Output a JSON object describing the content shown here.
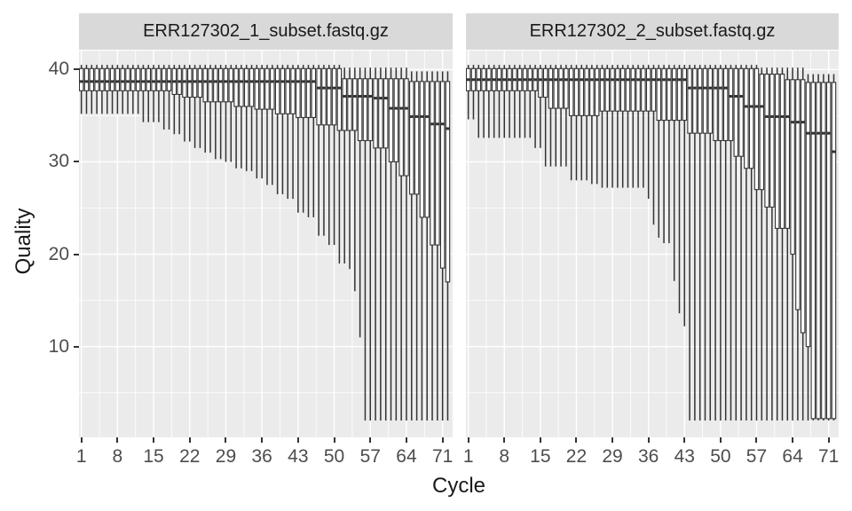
{
  "colors": {
    "background": "#FFFFFF",
    "panel_background": "#EBEBEB",
    "strip_background": "#D9D9D9",
    "grid": "#FFFFFF",
    "box_stroke": "#333333",
    "box_fill": "#FFFFFF",
    "axis_text": "#4D4D4D",
    "title_text": "#1A1A1A"
  },
  "chart_data": {
    "type": "boxplot",
    "title": "",
    "xlabel": "Cycle",
    "ylabel": "Quality",
    "legend": "none",
    "grid": "on",
    "xlim": [
      0.54,
      72.95
    ],
    "ylim": [
      0.17,
      42.05
    ],
    "x_ticks": [
      1,
      8,
      15,
      22,
      29,
      36,
      43,
      50,
      57,
      64,
      71
    ],
    "x_minor": [
      4.5,
      11.5,
      18.5,
      25.5,
      32.5,
      39.5,
      46.5,
      53.5,
      60.5,
      67.5
    ],
    "y_ticks": [
      10,
      20,
      30,
      40
    ],
    "y_minor": [
      5,
      15,
      25,
      35
    ],
    "cycles": 72,
    "facets": [
      {
        "label": "ERR127302_1_subset.fastq.gz",
        "min": [
          35.2,
          35.2,
          35.2,
          35.2,
          35.2,
          35.2,
          35.2,
          35.2,
          35.2,
          35.2,
          35.2,
          35.2,
          34.3,
          34.3,
          34.3,
          34.3,
          33.5,
          33.5,
          33.0,
          33.0,
          32.2,
          32.2,
          31.5,
          31.5,
          31.0,
          31.0,
          30.3,
          30.3,
          30.0,
          30.0,
          29.3,
          29.3,
          29.0,
          29.0,
          28.2,
          28.2,
          27.5,
          27.5,
          26.5,
          26.5,
          26.0,
          26.0,
          24.5,
          24.5,
          24.0,
          24.0,
          22.0,
          22.0,
          21.0,
          21.0,
          19.0,
          19.0,
          18.4,
          16.0,
          11.0,
          2.0,
          2.0,
          2.0,
          2.0,
          2.0,
          2.0,
          2.0,
          2.0,
          2.0,
          2.0,
          2.0,
          2.0,
          2.0,
          2.0,
          2.0,
          2.0,
          2.0
        ],
        "q1": [
          37.7,
          37.7,
          37.7,
          37.7,
          37.7,
          37.7,
          37.7,
          37.7,
          37.7,
          37.7,
          37.7,
          37.7,
          37.7,
          37.7,
          37.7,
          37.7,
          37.7,
          37.7,
          37.3,
          37.3,
          37.0,
          37.0,
          37.0,
          37.0,
          36.5,
          36.5,
          36.5,
          36.5,
          36.5,
          36.5,
          36.0,
          36.0,
          36.0,
          36.0,
          35.7,
          35.7,
          35.7,
          35.7,
          35.2,
          35.2,
          35.2,
          35.2,
          34.8,
          34.8,
          34.8,
          34.8,
          34.0,
          34.0,
          34.0,
          34.0,
          33.4,
          33.4,
          33.4,
          33.4,
          32.3,
          32.3,
          32.3,
          31.5,
          31.5,
          31.5,
          30.0,
          30.0,
          28.5,
          28.5,
          26.5,
          26.5,
          24.0,
          24.0,
          21.0,
          21.0,
          18.5,
          17.0
        ],
        "median": [
          38.7,
          38.7,
          38.7,
          38.7,
          38.7,
          38.7,
          38.7,
          38.7,
          38.7,
          38.7,
          38.7,
          38.7,
          38.7,
          38.7,
          38.7,
          38.7,
          38.7,
          38.7,
          38.7,
          38.7,
          38.7,
          38.7,
          38.7,
          38.7,
          38.7,
          38.7,
          38.7,
          38.7,
          38.7,
          38.7,
          38.7,
          38.7,
          38.7,
          38.7,
          38.7,
          38.7,
          38.7,
          38.7,
          38.7,
          38.7,
          38.7,
          38.7,
          38.7,
          38.7,
          38.7,
          38.7,
          38.0,
          38.0,
          38.0,
          38.0,
          38.0,
          37.1,
          37.1,
          37.1,
          37.1,
          37.1,
          37.1,
          36.9,
          36.9,
          36.9,
          35.8,
          35.8,
          35.8,
          35.8,
          34.9,
          34.9,
          34.9,
          34.9,
          34.1,
          34.1,
          34.1,
          33.6
        ],
        "q3": [
          40.1,
          40.1,
          40.1,
          40.1,
          40.1,
          40.1,
          40.1,
          40.1,
          40.1,
          40.1,
          40.1,
          40.1,
          40.1,
          40.1,
          40.1,
          40.1,
          40.1,
          40.1,
          40.1,
          40.1,
          40.1,
          40.1,
          40.1,
          40.1,
          40.1,
          40.1,
          40.1,
          40.1,
          40.1,
          40.1,
          40.1,
          40.1,
          40.1,
          40.1,
          40.1,
          40.1,
          40.1,
          40.1,
          40.1,
          40.1,
          40.1,
          40.1,
          40.1,
          40.1,
          40.1,
          40.1,
          40.1,
          40.1,
          40.1,
          40.1,
          40.1,
          39.0,
          39.0,
          39.0,
          39.0,
          39.0,
          39.0,
          39.0,
          39.0,
          39.0,
          39.0,
          39.0,
          39.0,
          39.0,
          38.7,
          38.7,
          38.7,
          38.7,
          38.7,
          38.7,
          38.7,
          38.7
        ],
        "max": [
          40.5,
          40.5,
          40.5,
          40.5,
          40.5,
          40.5,
          40.5,
          40.5,
          40.5,
          40.5,
          40.5,
          40.5,
          40.5,
          40.5,
          40.5,
          40.5,
          40.5,
          40.5,
          40.5,
          40.5,
          40.5,
          40.5,
          40.5,
          40.5,
          40.5,
          40.5,
          40.5,
          40.5,
          40.5,
          40.5,
          40.5,
          40.5,
          40.5,
          40.5,
          40.5,
          40.5,
          40.5,
          40.5,
          40.5,
          40.5,
          40.5,
          40.5,
          40.5,
          40.5,
          40.5,
          40.5,
          40.5,
          40.5,
          40.5,
          40.5,
          40.5,
          40.2,
          40.2,
          40.2,
          40.2,
          40.2,
          40.2,
          40.2,
          40.2,
          40.2,
          40.2,
          40.2,
          40.2,
          40.2,
          39.8,
          39.8,
          39.8,
          39.8,
          39.8,
          39.8,
          39.8,
          39.8
        ]
      },
      {
        "label": "ERR127302_2_subset.fastq.gz",
        "min": [
          34.6,
          34.6,
          32.6,
          32.6,
          32.6,
          32.6,
          32.6,
          32.6,
          32.6,
          32.6,
          32.6,
          32.6,
          32.6,
          31.5,
          31.5,
          29.5,
          29.5,
          29.5,
          29.5,
          29.5,
          28.0,
          28.0,
          28.0,
          28.0,
          27.6,
          27.6,
          27.2,
          27.2,
          27.2,
          27.2,
          27.2,
          27.2,
          27.2,
          27.2,
          27.2,
          26.0,
          23.2,
          21.8,
          21.2,
          21.2,
          17.1,
          13.6,
          12.2,
          2.0,
          2.0,
          2.0,
          2.0,
          2.0,
          2.0,
          2.0,
          2.0,
          2.0,
          2.0,
          2.0,
          2.0,
          2.0,
          2.0,
          2.0,
          2.0,
          2.0,
          2.0,
          2.0,
          2.0,
          2.0,
          2.0,
          2.0,
          2.0,
          2.0,
          2.0,
          2.0,
          2.0,
          2.0
        ],
        "q1": [
          37.7,
          37.7,
          37.7,
          37.7,
          37.7,
          37.7,
          37.7,
          37.7,
          37.7,
          37.7,
          37.7,
          37.7,
          37.7,
          37.7,
          37.0,
          37.0,
          35.8,
          35.8,
          35.8,
          35.8,
          35.0,
          35.0,
          35.0,
          35.0,
          35.0,
          35.0,
          35.5,
          35.5,
          35.5,
          35.5,
          35.5,
          35.5,
          35.5,
          35.5,
          35.5,
          35.5,
          35.5,
          34.5,
          34.5,
          34.5,
          34.5,
          34.5,
          34.5,
          33.1,
          33.1,
          33.1,
          33.1,
          33.1,
          32.3,
          32.3,
          32.3,
          32.3,
          30.6,
          30.6,
          29.3,
          29.3,
          27.0,
          27.0,
          25.1,
          25.1,
          22.8,
          22.8,
          22.8,
          20.0,
          14.0,
          11.5,
          10.0,
          2.2,
          2.2,
          2.2,
          2.2,
          2.2
        ],
        "median": [
          38.9,
          38.9,
          38.9,
          38.9,
          38.9,
          38.9,
          38.9,
          38.9,
          38.9,
          38.9,
          38.9,
          38.9,
          38.9,
          38.9,
          38.9,
          38.9,
          38.9,
          38.9,
          38.9,
          38.9,
          38.9,
          38.9,
          38.9,
          38.9,
          38.9,
          38.9,
          38.9,
          38.9,
          38.9,
          38.9,
          38.9,
          38.9,
          38.9,
          38.9,
          38.9,
          38.9,
          38.9,
          38.9,
          38.9,
          38.9,
          38.9,
          38.9,
          38.9,
          38.0,
          38.0,
          38.0,
          38.0,
          38.0,
          38.0,
          38.0,
          38.0,
          37.1,
          37.1,
          37.1,
          36.0,
          36.0,
          36.0,
          36.0,
          34.9,
          34.9,
          34.9,
          34.9,
          34.9,
          34.3,
          34.3,
          34.3,
          33.1,
          33.1,
          33.1,
          33.1,
          33.1,
          31.1
        ],
        "q3": [
          40.1,
          40.1,
          40.1,
          40.1,
          40.1,
          40.1,
          40.1,
          40.1,
          40.1,
          40.1,
          40.1,
          40.1,
          40.1,
          40.1,
          40.1,
          40.1,
          40.1,
          40.1,
          40.1,
          40.1,
          40.1,
          40.1,
          40.1,
          40.1,
          40.1,
          40.1,
          40.1,
          40.1,
          40.1,
          40.1,
          40.1,
          40.1,
          40.1,
          40.1,
          40.1,
          40.1,
          40.1,
          40.1,
          40.1,
          40.1,
          40.1,
          40.1,
          40.1,
          40.1,
          40.1,
          40.1,
          40.1,
          40.1,
          40.1,
          40.1,
          40.1,
          40.1,
          40.1,
          40.1,
          40.1,
          40.1,
          40.1,
          39.5,
          39.5,
          39.5,
          39.5,
          39.5,
          38.9,
          38.9,
          38.9,
          38.9,
          38.6,
          38.6,
          38.6,
          38.6,
          38.6,
          38.6
        ],
        "max": [
          40.5,
          40.5,
          40.5,
          40.5,
          40.5,
          40.5,
          40.5,
          40.5,
          40.5,
          40.5,
          40.5,
          40.5,
          40.5,
          40.5,
          40.5,
          40.5,
          40.5,
          40.5,
          40.5,
          40.5,
          40.5,
          40.5,
          40.5,
          40.5,
          40.5,
          40.5,
          40.5,
          40.5,
          40.5,
          40.5,
          40.5,
          40.5,
          40.5,
          40.5,
          40.5,
          40.5,
          40.5,
          40.5,
          40.5,
          40.5,
          40.5,
          40.5,
          40.5,
          40.5,
          40.5,
          40.5,
          40.5,
          40.5,
          40.5,
          40.5,
          40.5,
          40.5,
          40.5,
          40.5,
          40.5,
          40.5,
          40.5,
          40.2,
          40.2,
          40.2,
          40.2,
          40.2,
          40.2,
          40.2,
          40.2,
          40.2,
          39.5,
          39.5,
          39.5,
          39.5,
          39.5,
          39.5
        ]
      }
    ]
  }
}
